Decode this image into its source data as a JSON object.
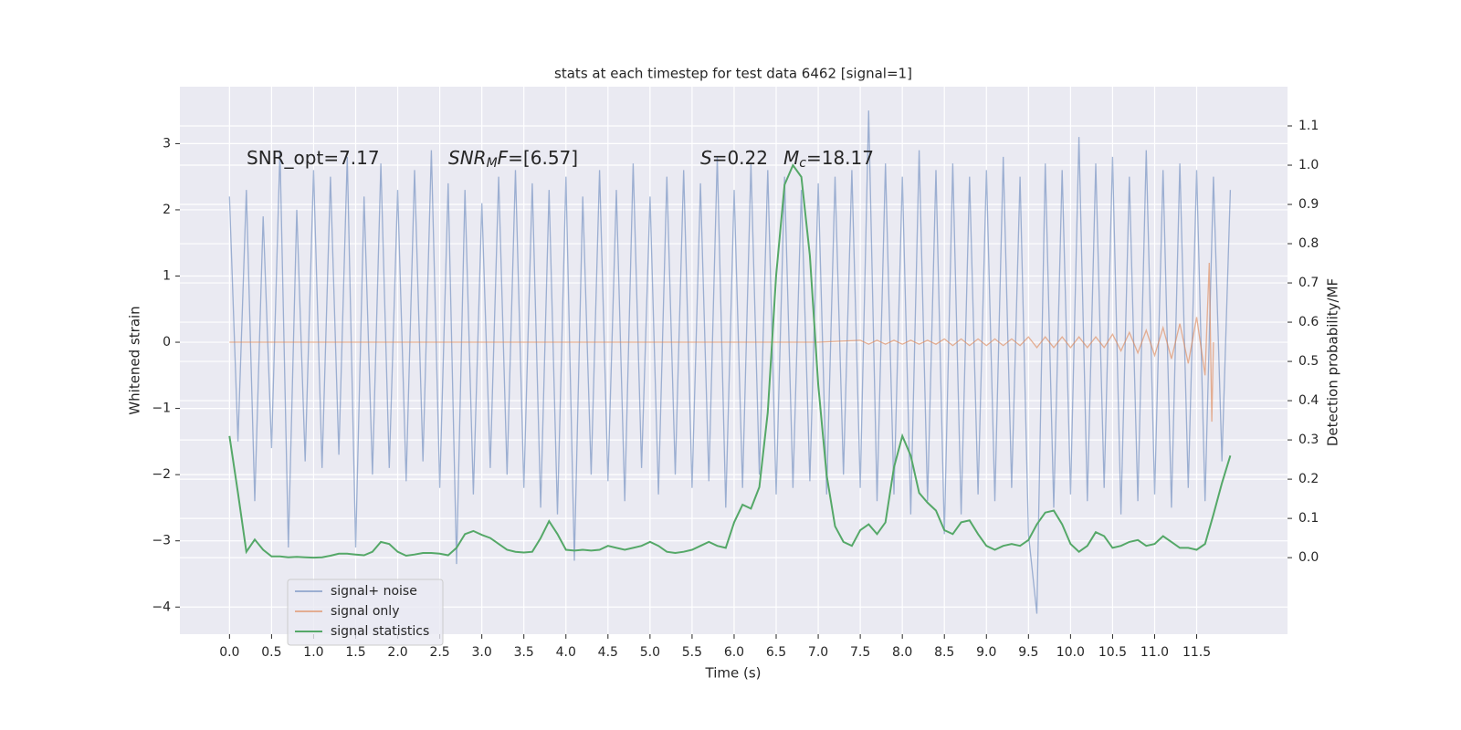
{
  "chart_data": {
    "type": "line",
    "title": "stats at each timestep for test data 6462 [signal=1]",
    "xlabel": "Time (s)",
    "ylabel": "Whitened strain",
    "y2label": "Detection probability/MF",
    "xlim": [
      -0.59,
      12.58
    ],
    "ylim": [
      -4.41,
      3.86
    ],
    "y2lim": [
      -0.195,
      1.2
    ],
    "xticks": [
      {
        "value": 0,
        "label": "0.0"
      },
      0.5,
      {
        "value": 1,
        "label": "1.0"
      },
      1.5,
      {
        "value": 2,
        "label": "2.0"
      },
      2.5,
      {
        "value": 3,
        "label": "3.0"
      },
      3.5,
      {
        "value": 4,
        "label": "4.0"
      },
      4.5,
      {
        "value": 5,
        "label": "5.0"
      },
      5.5,
      {
        "value": 6,
        "label": "6.0"
      },
      6.5,
      {
        "value": 7,
        "label": "7.0"
      },
      7.5,
      {
        "value": 8,
        "label": "8.0"
      },
      8.5,
      {
        "value": 9,
        "label": "9.0"
      },
      9.5,
      {
        "value": 10,
        "label": "10.0"
      },
      10.5,
      {
        "value": 11,
        "label": "11.0"
      },
      11.5
    ],
    "yticks": [
      {
        "value": -4,
        "label": "−4"
      },
      {
        "value": -3,
        "label": "−3"
      },
      {
        "value": -2,
        "label": "−2"
      },
      {
        "value": -1,
        "label": "−1"
      },
      0,
      1,
      2,
      3
    ],
    "y2ticks": [
      {
        "value": 0,
        "label": "0.0"
      },
      0.1,
      0.2,
      0.3,
      0.4,
      0.5,
      0.6,
      0.7,
      0.8,
      0.9,
      {
        "value": 1,
        "label": "1.0"
      },
      1.1
    ],
    "grid": true,
    "legend": "lower left",
    "annotations": [
      [
        {
          "text": "SNR_opt=7.17",
          "style": "normal"
        }
      ],
      [
        {
          "text": "SNR",
          "style": "italic"
        },
        {
          "text": "M",
          "style": "sub"
        },
        {
          "text": "F",
          "style": "italic"
        },
        {
          "text": "=[6.57]",
          "style": "normal"
        }
      ],
      [
        {
          "text": "S",
          "style": "italic"
        },
        {
          "text": "=0.22",
          "style": "normal"
        }
      ],
      [
        {
          "text": "M",
          "style": "italic"
        },
        {
          "text": "c",
          "style": "sub"
        },
        {
          "text": "=18.17",
          "style": "normal"
        }
      ]
    ],
    "x": [
      0,
      0.1,
      0.2,
      0.3,
      0.4,
      0.5,
      0.6,
      0.7,
      0.8,
      0.9,
      1,
      1.1,
      1.2,
      1.3,
      1.4,
      1.5,
      1.6,
      1.7,
      1.8,
      1.9,
      2,
      2.1,
      2.2,
      2.3,
      2.4,
      2.5,
      2.6,
      2.7,
      2.8,
      2.9,
      3,
      3.1,
      3.2,
      3.3,
      3.4,
      3.5,
      3.6,
      3.7,
      3.8,
      3.9,
      4,
      4.1,
      4.2,
      4.3,
      4.4,
      4.5,
      4.6,
      4.7,
      4.8,
      4.9,
      5,
      5.1,
      5.2,
      5.3,
      5.4,
      5.5,
      5.6,
      5.7,
      5.8,
      5.9,
      6,
      6.1,
      6.2,
      6.3,
      6.4,
      6.5,
      6.6,
      6.7,
      6.8,
      6.9,
      7,
      7.1,
      7.2,
      7.3,
      7.4,
      7.5,
      7.6,
      7.7,
      7.8,
      7.9,
      8,
      8.1,
      8.2,
      8.3,
      8.4,
      8.5,
      8.6,
      8.7,
      8.8,
      8.9,
      9,
      9.1,
      9.2,
      9.3,
      9.4,
      9.5,
      9.6,
      9.7,
      9.8,
      9.9,
      10,
      10.1,
      10.2,
      10.3,
      10.4,
      10.5,
      10.6,
      10.7,
      10.8,
      10.9,
      11,
      11.1,
      11.2,
      11.3,
      11.4,
      11.5,
      11.6,
      11.7,
      11.8,
      11.9
    ],
    "series": [
      {
        "name": "signal+ noise",
        "color": "#4c72b0",
        "opacity": 0.5,
        "axis": "y",
        "values": [
          2.2,
          -1.5,
          2.3,
          -2.4,
          1.9,
          -1.6,
          2.9,
          -3.1,
          2.0,
          -1.8,
          2.6,
          -1.9,
          2.5,
          -1.7,
          2.8,
          -3.1,
          2.2,
          -2.0,
          2.7,
          -1.9,
          2.3,
          -2.1,
          2.6,
          -1.8,
          2.9,
          -2.2,
          2.4,
          -3.35,
          2.3,
          -2.3,
          2.1,
          -1.9,
          2.5,
          -2.0,
          2.6,
          -2.2,
          2.4,
          -2.5,
          2.3,
          -2.6,
          2.5,
          -3.3,
          2.2,
          -2.0,
          2.6,
          -2.1,
          2.3,
          -2.4,
          2.7,
          -1.9,
          2.2,
          -2.3,
          2.5,
          -2.0,
          2.6,
          -2.2,
          2.4,
          -2.1,
          2.8,
          -2.5,
          2.3,
          -2.2,
          2.7,
          -2.0,
          2.6,
          -2.3,
          2.5,
          -2.2,
          2.3,
          -2.1,
          2.4,
          -2.3,
          2.5,
          -2.0,
          2.6,
          -2.2,
          3.5,
          -2.4,
          2.7,
          -2.3,
          2.5,
          -2.6,
          2.9,
          -2.4,
          2.6,
          -2.9,
          2.7,
          -2.6,
          2.5,
          -2.3,
          2.6,
          -2.4,
          2.8,
          -2.2,
          2.5,
          -2.9,
          -4.1,
          2.7,
          -2.5,
          2.6,
          -2.3,
          3.1,
          -2.4,
          2.7,
          -2.2,
          2.8,
          -2.6,
          2.5,
          -2.4,
          2.9,
          -2.3,
          2.6,
          -2.5,
          2.7,
          -2.2,
          2.6,
          -2.4,
          2.5,
          -1.8,
          2.3
        ]
      },
      {
        "name": "signal only",
        "color": "#dd8452",
        "opacity": 0.6,
        "axis": "y",
        "x": [
          0,
          7.0,
          7.5,
          7.6,
          7.7,
          7.8,
          7.9,
          8.0,
          8.1,
          8.2,
          8.3,
          8.4,
          8.5,
          8.6,
          8.7,
          8.8,
          8.9,
          9.0,
          9.1,
          9.2,
          9.3,
          9.4,
          9.5,
          9.6,
          9.7,
          9.8,
          9.9,
          10.0,
          10.1,
          10.2,
          10.3,
          10.4,
          10.5,
          10.6,
          10.7,
          10.8,
          10.9,
          11.0,
          11.1,
          11.2,
          11.3,
          11.4,
          11.5,
          11.6,
          11.65,
          11.68,
          11.7
        ],
        "values": [
          0,
          0,
          0.03,
          -0.03,
          0.03,
          -0.03,
          0.03,
          -0.03,
          0.03,
          -0.03,
          0.03,
          -0.03,
          0.05,
          -0.05,
          0.05,
          -0.05,
          0.05,
          -0.05,
          0.05,
          -0.05,
          0.05,
          -0.05,
          0.08,
          -0.08,
          0.08,
          -0.08,
          0.08,
          -0.08,
          0.08,
          -0.08,
          0.08,
          -0.08,
          0.12,
          -0.13,
          0.15,
          -0.16,
          0.18,
          -0.2,
          0.22,
          -0.25,
          0.28,
          -0.32,
          0.38,
          -0.5,
          1.2,
          -1.2,
          0
        ]
      },
      {
        "name": "signal statistics",
        "color": "#55a868",
        "opacity": 1,
        "axis": "y2",
        "values": [
          0.31,
          0.165,
          0.015,
          0.046,
          0.02,
          0.003,
          0.003,
          0.001,
          0.002,
          0.001,
          0,
          0.001,
          0.005,
          0.01,
          0.01,
          0.008,
          0.006,
          0.015,
          0.04,
          0.035,
          0.015,
          0.005,
          0.008,
          0.012,
          0.012,
          0.01,
          0.006,
          0.025,
          0.06,
          0.068,
          0.058,
          0.05,
          0.035,
          0.02,
          0.015,
          0.013,
          0.015,
          0.05,
          0.093,
          0.06,
          0.02,
          0.018,
          0.02,
          0.018,
          0.02,
          0.03,
          0.025,
          0.02,
          0.025,
          0.03,
          0.04,
          0.03,
          0.015,
          0.012,
          0.015,
          0.02,
          0.03,
          0.04,
          0.03,
          0.025,
          0.09,
          0.135,
          0.125,
          0.18,
          0.37,
          0.72,
          0.95,
          1.0,
          0.97,
          0.77,
          0.44,
          0.21,
          0.08,
          0.04,
          0.03,
          0.07,
          0.085,
          0.06,
          0.09,
          0.23,
          0.31,
          0.26,
          0.165,
          0.14,
          0.12,
          0.07,
          0.06,
          0.09,
          0.095,
          0.06,
          0.03,
          0.02,
          0.03,
          0.035,
          0.03,
          0.045,
          0.085,
          0.115,
          0.12,
          0.085,
          0.035,
          0.015,
          0.03,
          0.065,
          0.055,
          0.025,
          0.03,
          0.04,
          0.045,
          0.03,
          0.035,
          0.055,
          0.04,
          0.025,
          0.025,
          0.02,
          0.035,
          0.11,
          0.19,
          0.26
        ]
      }
    ]
  }
}
